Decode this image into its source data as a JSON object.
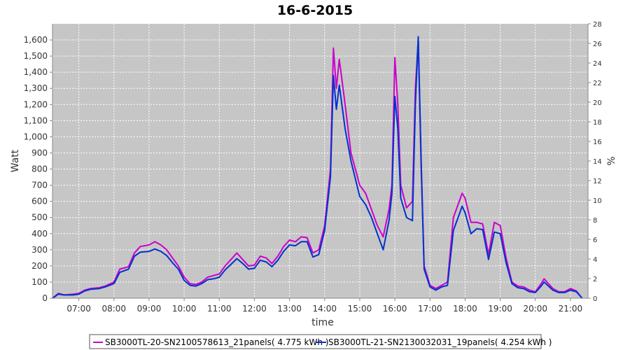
{
  "chart_data": {
    "type": "line",
    "title": "16-6-2015",
    "xlabel": "time",
    "ylabel": "Watt",
    "y2label": "%",
    "ylim": [
      0,
      1700
    ],
    "y2lim": [
      0,
      28
    ],
    "xlim": [
      "06:15",
      "21:30"
    ],
    "x_ticks": [
      "07:00",
      "08:00",
      "09:00",
      "10:00",
      "11:00",
      "12:00",
      "13:00",
      "14:00",
      "15:00",
      "16:00",
      "17:00",
      "18:00",
      "19:00",
      "20:00",
      "21:00"
    ],
    "y_ticks": [
      "0",
      "100",
      "200",
      "300",
      "400",
      "500",
      "600",
      "700",
      "800",
      "900",
      "1,000",
      "1,100",
      "1,200",
      "1,300",
      "1,400",
      "1,500",
      "1,600"
    ],
    "y2_ticks": [
      "0",
      "2",
      "4",
      "6",
      "8",
      "10",
      "12",
      "14",
      "16",
      "18",
      "20",
      "22",
      "24",
      "26",
      "28"
    ],
    "grid": true,
    "legend_position": "bottom",
    "series": [
      {
        "name": "SB3000TL-20-SN2100578613_21panels( 4.775 kWh )",
        "color": "#cc00cc",
        "points": [
          [
            "06:15",
            0
          ],
          [
            "06:25",
            30
          ],
          [
            "06:35",
            20
          ],
          [
            "06:50",
            25
          ],
          [
            "07:00",
            30
          ],
          [
            "07:10",
            50
          ],
          [
            "07:20",
            60
          ],
          [
            "07:35",
            65
          ],
          [
            "07:45",
            75
          ],
          [
            "08:00",
            100
          ],
          [
            "08:10",
            180
          ],
          [
            "08:25",
            195
          ],
          [
            "08:35",
            280
          ],
          [
            "08:45",
            320
          ],
          [
            "09:00",
            330
          ],
          [
            "09:10",
            350
          ],
          [
            "09:20",
            330
          ],
          [
            "09:30",
            300
          ],
          [
            "09:40",
            250
          ],
          [
            "09:50",
            200
          ],
          [
            "10:00",
            130
          ],
          [
            "10:10",
            90
          ],
          [
            "10:20",
            85
          ],
          [
            "10:30",
            100
          ],
          [
            "10:40",
            130
          ],
          [
            "10:50",
            140
          ],
          [
            "11:00",
            150
          ],
          [
            "11:10",
            200
          ],
          [
            "11:20",
            240
          ],
          [
            "11:30",
            280
          ],
          [
            "11:40",
            240
          ],
          [
            "11:50",
            200
          ],
          [
            "12:00",
            205
          ],
          [
            "12:10",
            260
          ],
          [
            "12:20",
            250
          ],
          [
            "12:30",
            215
          ],
          [
            "12:40",
            260
          ],
          [
            "12:50",
            320
          ],
          [
            "13:00",
            360
          ],
          [
            "13:10",
            350
          ],
          [
            "13:20",
            380
          ],
          [
            "13:30",
            375
          ],
          [
            "13:40",
            280
          ],
          [
            "13:50",
            300
          ],
          [
            "14:00",
            450
          ],
          [
            "14:10",
            800
          ],
          [
            "14:15",
            1550
          ],
          [
            "14:20",
            1300
          ],
          [
            "14:25",
            1480
          ],
          [
            "14:35",
            1200
          ],
          [
            "14:45",
            900
          ],
          [
            "15:00",
            700
          ],
          [
            "15:10",
            650
          ],
          [
            "15:20",
            550
          ],
          [
            "15:30",
            450
          ],
          [
            "15:40",
            380
          ],
          [
            "15:50",
            550
          ],
          [
            "15:55",
            700
          ],
          [
            "16:00",
            1490
          ],
          [
            "16:05",
            1200
          ],
          [
            "16:10",
            700
          ],
          [
            "16:20",
            560
          ],
          [
            "16:30",
            600
          ],
          [
            "16:35",
            1300
          ],
          [
            "16:40",
            1600
          ],
          [
            "16:45",
            800
          ],
          [
            "16:50",
            200
          ],
          [
            "17:00",
            80
          ],
          [
            "17:10",
            60
          ],
          [
            "17:20",
            80
          ],
          [
            "17:30",
            100
          ],
          [
            "17:40",
            500
          ],
          [
            "17:50",
            600
          ],
          [
            "17:55",
            650
          ],
          [
            "18:00",
            620
          ],
          [
            "18:10",
            470
          ],
          [
            "18:20",
            470
          ],
          [
            "18:30",
            460
          ],
          [
            "18:40",
            270
          ],
          [
            "18:50",
            470
          ],
          [
            "19:00",
            450
          ],
          [
            "19:10",
            250
          ],
          [
            "19:20",
            100
          ],
          [
            "19:30",
            75
          ],
          [
            "19:40",
            70
          ],
          [
            "19:50",
            50
          ],
          [
            "20:00",
            40
          ],
          [
            "20:10",
            90
          ],
          [
            "20:15",
            120
          ],
          [
            "20:30",
            60
          ],
          [
            "20:40",
            40
          ],
          [
            "20:50",
            40
          ],
          [
            "21:00",
            60
          ],
          [
            "21:10",
            45
          ],
          [
            "21:20",
            0
          ]
        ]
      },
      {
        "name": "SB3000TL-21-SN2130032031_19panels( 4.254 kWh )",
        "color": "#0033cc",
        "points": [
          [
            "06:15",
            0
          ],
          [
            "06:25",
            25
          ],
          [
            "06:35",
            20
          ],
          [
            "06:50",
            20
          ],
          [
            "07:00",
            25
          ],
          [
            "07:10",
            45
          ],
          [
            "07:20",
            55
          ],
          [
            "07:35",
            60
          ],
          [
            "07:45",
            70
          ],
          [
            "08:00",
            90
          ],
          [
            "08:10",
            160
          ],
          [
            "08:25",
            180
          ],
          [
            "08:35",
            260
          ],
          [
            "08:45",
            285
          ],
          [
            "09:00",
            290
          ],
          [
            "09:10",
            305
          ],
          [
            "09:20",
            290
          ],
          [
            "09:30",
            265
          ],
          [
            "09:40",
            220
          ],
          [
            "09:50",
            180
          ],
          [
            "10:00",
            110
          ],
          [
            "10:10",
            80
          ],
          [
            "10:20",
            75
          ],
          [
            "10:30",
            90
          ],
          [
            "10:40",
            115
          ],
          [
            "10:50",
            120
          ],
          [
            "11:00",
            130
          ],
          [
            "11:10",
            175
          ],
          [
            "11:20",
            210
          ],
          [
            "11:30",
            245
          ],
          [
            "11:40",
            215
          ],
          [
            "11:50",
            180
          ],
          [
            "12:00",
            185
          ],
          [
            "12:10",
            235
          ],
          [
            "12:20",
            225
          ],
          [
            "12:30",
            195
          ],
          [
            "12:40",
            235
          ],
          [
            "12:50",
            290
          ],
          [
            "13:00",
            330
          ],
          [
            "13:10",
            325
          ],
          [
            "13:20",
            350
          ],
          [
            "13:30",
            350
          ],
          [
            "13:40",
            255
          ],
          [
            "13:50",
            270
          ],
          [
            "14:00",
            420
          ],
          [
            "14:10",
            750
          ],
          [
            "14:15",
            1380
          ],
          [
            "14:20",
            1170
          ],
          [
            "14:25",
            1320
          ],
          [
            "14:35",
            1050
          ],
          [
            "14:45",
            850
          ],
          [
            "15:00",
            630
          ],
          [
            "15:10",
            580
          ],
          [
            "15:20",
            500
          ],
          [
            "15:30",
            400
          ],
          [
            "15:40",
            300
          ],
          [
            "15:50",
            480
          ],
          [
            "15:55",
            650
          ],
          [
            "16:00",
            1250
          ],
          [
            "16:05",
            1050
          ],
          [
            "16:10",
            620
          ],
          [
            "16:20",
            500
          ],
          [
            "16:30",
            480
          ],
          [
            "16:35",
            1200
          ],
          [
            "16:40",
            1620
          ],
          [
            "16:45",
            850
          ],
          [
            "16:50",
            180
          ],
          [
            "17:00",
            70
          ],
          [
            "17:10",
            50
          ],
          [
            "17:20",
            70
          ],
          [
            "17:30",
            80
          ],
          [
            "17:40",
            420
          ],
          [
            "17:50",
            520
          ],
          [
            "17:55",
            570
          ],
          [
            "18:00",
            530
          ],
          [
            "18:10",
            400
          ],
          [
            "18:20",
            430
          ],
          [
            "18:30",
            425
          ],
          [
            "18:40",
            240
          ],
          [
            "18:50",
            410
          ],
          [
            "19:00",
            400
          ],
          [
            "19:10",
            220
          ],
          [
            "19:20",
            90
          ],
          [
            "19:30",
            65
          ],
          [
            "19:40",
            60
          ],
          [
            "19:50",
            40
          ],
          [
            "20:00",
            35
          ],
          [
            "20:10",
            75
          ],
          [
            "20:15",
            100
          ],
          [
            "20:30",
            50
          ],
          [
            "20:40",
            35
          ],
          [
            "20:50",
            35
          ],
          [
            "21:00",
            50
          ],
          [
            "21:10",
            40
          ],
          [
            "21:20",
            0
          ]
        ]
      }
    ]
  }
}
